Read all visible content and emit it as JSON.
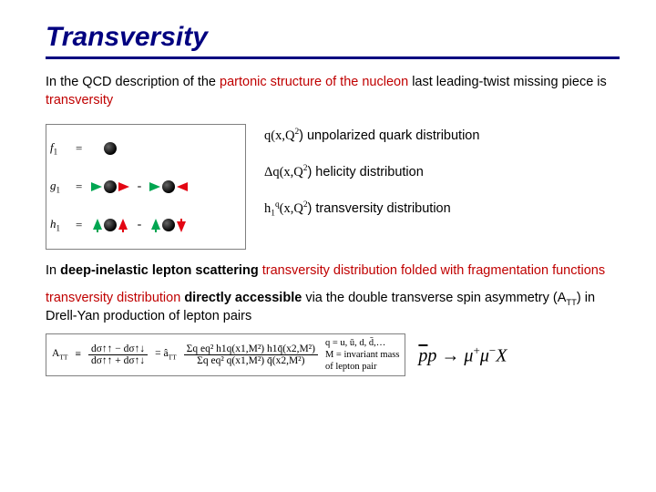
{
  "title": "Transversity",
  "intro_plain1": "In the QCD description of the ",
  "intro_red1": "partonic structure of the nucleon",
  "intro_plain2": " last leading-twist missing piece is ",
  "intro_red2": "transversity",
  "diagrams": {
    "f1_label": "f",
    "g1_label": "g",
    "h1_label": "h",
    "sub": "1",
    "eq": "=",
    "plus": "+",
    "minus": "-",
    "colors": {
      "green": "#00a651",
      "red": "#e30613",
      "black": "#000000"
    }
  },
  "dist": {
    "q": "q(x,Q",
    "q_sup": "2",
    "q_tail": ") unpolarized quark distribution",
    "dq": "Δq(x,Q",
    "dq_sup": "2",
    "dq_tail": ") helicity distribution",
    "h1": "h",
    "h1_sub1": "1",
    "h1_sup": "q",
    "h1_mid": "(x,Q",
    "h1_sup2": "2",
    "h1_tail": ") transversity distribution"
  },
  "para2_a": "In ",
  "para2_b": "deep-inelastic lepton scattering",
  "para2_c": " ",
  "para2_d": "transversity distribution folded with fragmentation functions",
  "para3_a": "transversity distribution",
  "para3_b": " ",
  "para3_c": "directly accessible",
  "para3_d": " via the double transverse spin asymmetry (A",
  "para3_sub": "TT",
  "para3_e": ") in Drell-Yan production of lepton pairs",
  "formula": {
    "Att": "A",
    "Att_sub": "TT",
    "eqdef": "≡",
    "num1": "dσ↑↑ − dσ↑↓",
    "den1": "dσ↑↑ + dσ↑↓",
    "eq2": "= â",
    "ahat_sub": "TT",
    "sum_num": "Σq eq² h1q(x1,M²) h1q̄(x2,M²)",
    "sum_den": "Σq eq² q(x1,M²) q̄(x2,M²)",
    "meta_q": "q = u, ū, d, d̄,…",
    "meta_M": "M = invariant mass",
    "meta_M2": "of lepton pair"
  },
  "process": {
    "pbar": "p",
    "p": "p",
    "arrow": "→",
    "mu": "μ",
    "plus": "+",
    "minus": "−",
    "X": "X"
  }
}
